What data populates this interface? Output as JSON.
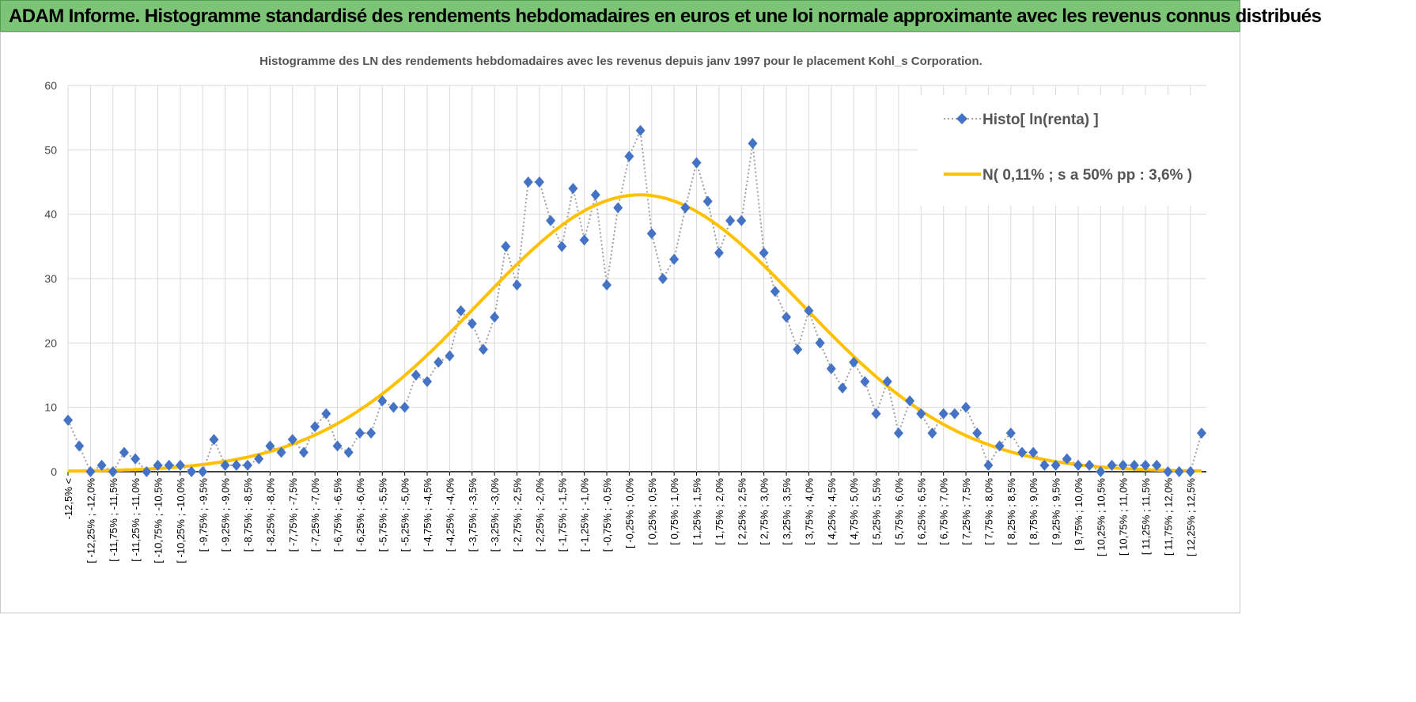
{
  "header": {
    "title": "ADAM Informe. Histogramme standardisé des rendements hebdomadaires en euros et une loi normale approximante avec les revenus connus distribués"
  },
  "colors": {
    "header_bg": "#7cc576",
    "histo": "#4472c4",
    "normal": "#ffc000",
    "connector": "#a0a0a0"
  },
  "chart_data": {
    "type": "line",
    "title": "Histogramme des LN des rendements hebdomadaires avec les revenus depuis janv 1997 pour le placement Kohl_s Corporation.",
    "xlabel": "",
    "ylabel": "",
    "ylim": [
      0,
      60
    ],
    "yticks": [
      "0",
      "10",
      "20",
      "30",
      "40",
      "50",
      "60"
    ],
    "grid": true,
    "legend_position": "top-right",
    "x_tick_labels": [
      "-12,5% <",
      "[ -12,25% ; -12,0%",
      "[ -11,75% ; -11,5%",
      "[ -11,25% ; -11,0%",
      "[ -10,75% ; -10,5%",
      "[ -10,25% ; -10,0%",
      "[ -9,75% ; -9,5%",
      "[ -9,25% ; -9,0%",
      "[ -8,75% ; -8,5%",
      "[ -8,25% ; -8,0%",
      "[ -7,75% ; -7,5%",
      "[ -7,25% ; -7,0%",
      "[ -6,75% ; -6,5%",
      "[ -6,25% ; -6,0%",
      "[ -5,75% ; -5,5%",
      "[ -5,25% ; -5,0%",
      "[ -4,75% ; -4,5%",
      "[ -4,25% ; -4,0%",
      "[ -3,75% ; -3,5%",
      "[ -3,25% ; -3,0%",
      "[ -2,75% ; -2,5%",
      "[ -2,25% ; -2,0%",
      "[ -1,75% ; -1,5%",
      "[ -1,25% ; -1,0%",
      "[ -0,75% ; -0,5%",
      "[ -0,25% ; 0,0%",
      "[ 0,25% ; 0,5%",
      "[ 0,75% ; 1,0%",
      "[ 1,25% ; 1,5%",
      "[ 1,75% ; 2,0%",
      "[ 2,25% ; 2,5%",
      "[ 2,75% ; 3,0%",
      "[ 3,25% ; 3,5%",
      "[ 3,75% ; 4,0%",
      "[ 4,25% ; 4,5%",
      "[ 4,75% ; 5,0%",
      "[ 5,25% ; 5,5%",
      "[ 5,75% ; 6,0%",
      "[ 6,25% ; 6,5%",
      "[ 6,75% ; 7,0%",
      "[ 7,25% ; 7,5%",
      "[ 7,75% ; 8,0%",
      "[ 8,25% ; 8,5%",
      "[ 8,75% ; 9,0%",
      "[ 9,25% ; 9,5%",
      "[ 9,75% ; 10,0%",
      "[ 10,25% ; 10,5%",
      "[ 10,75% ; 11,0%",
      "[ 11,25% ; 11,5%",
      "[ 11,75% ; 12,0%",
      "[ 12,25% ; 12,5%"
    ],
    "category_count": 102,
    "series": [
      {
        "name": "Histo[ ln(renta) ]",
        "type": "line-markers-dotted",
        "values": [
          8,
          4,
          0,
          1,
          0,
          3,
          2,
          0,
          1,
          1,
          1,
          0,
          0,
          5,
          1,
          1,
          1,
          2,
          4,
          3,
          5,
          3,
          7,
          9,
          4,
          3,
          6,
          6,
          11,
          10,
          10,
          15,
          14,
          17,
          18,
          25,
          23,
          19,
          24,
          35,
          29,
          45,
          45,
          39,
          35,
          44,
          36,
          43,
          29,
          41,
          49,
          53,
          37,
          30,
          33,
          41,
          48,
          42,
          34,
          39,
          39,
          51,
          34,
          28,
          24,
          19,
          25,
          20,
          16,
          13,
          17,
          14,
          9,
          14,
          6,
          11,
          9,
          6,
          9,
          9,
          10,
          6,
          1,
          4,
          6,
          3,
          3,
          1,
          1,
          2,
          1,
          1,
          0,
          1,
          1,
          1,
          1,
          1,
          0,
          0,
          0,
          6
        ]
      },
      {
        "name": "N( 0,11% ; s a 50% pp : 3,6% )",
        "type": "smooth-line",
        "mean_pct": 0.11,
        "sd_pct": 3.6,
        "peak": 43
      }
    ]
  }
}
